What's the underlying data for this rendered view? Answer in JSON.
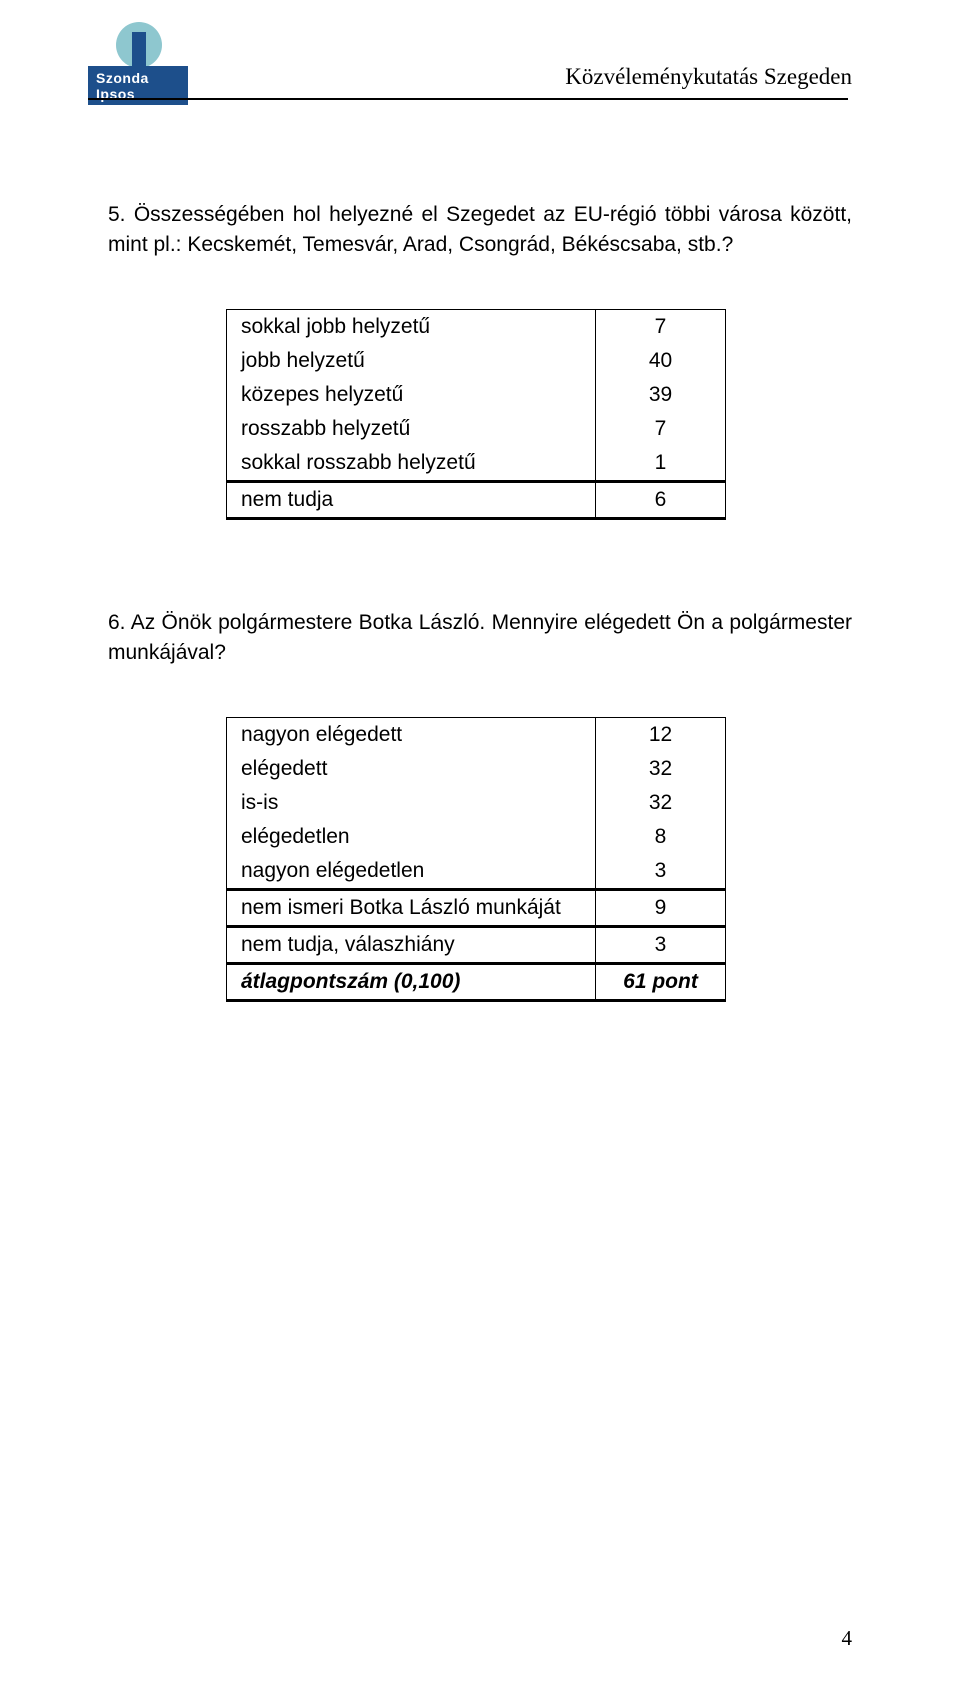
{
  "header": {
    "logo_text": "Szonda Ipsos",
    "title": "Közvéleménykutatás Szegeden"
  },
  "q5": {
    "text": "5. Összességében hol helyezné el Szegedet az EU-régió többi városa között, mint pl.: Kecskemét, Temesvár, Arad, Csongrád, Békéscsaba, stb.?",
    "rows": [
      {
        "label": "sokkal jobb helyzetű",
        "value": "7"
      },
      {
        "label": "jobb helyzetű",
        "value": "40"
      },
      {
        "label": "közepes helyzetű",
        "value": "39"
      },
      {
        "label": "rosszabb helyzetű",
        "value": "7"
      },
      {
        "label": "sokkal rosszabb helyzetű",
        "value": "1"
      },
      {
        "label": "nem tudja",
        "value": "6"
      }
    ]
  },
  "q6": {
    "text": "6. Az Önök polgármestere Botka László. Mennyire elégedett Ön a polgármester munkájával?",
    "rows": [
      {
        "label": "nagyon elégedett",
        "value": "12"
      },
      {
        "label": "elégedett",
        "value": "32"
      },
      {
        "label": "is-is",
        "value": "32"
      },
      {
        "label": "elégedetlen",
        "value": "8"
      },
      {
        "label": "nagyon elégedetlen",
        "value": "3"
      },
      {
        "label": "nem ismeri Botka László munkáját",
        "value": "9"
      },
      {
        "label": "nem tudja, válaszhiány",
        "value": "3"
      },
      {
        "label": "átlagpontszám (0,100)",
        "value": "61 pont"
      }
    ]
  },
  "page_number": "4"
}
